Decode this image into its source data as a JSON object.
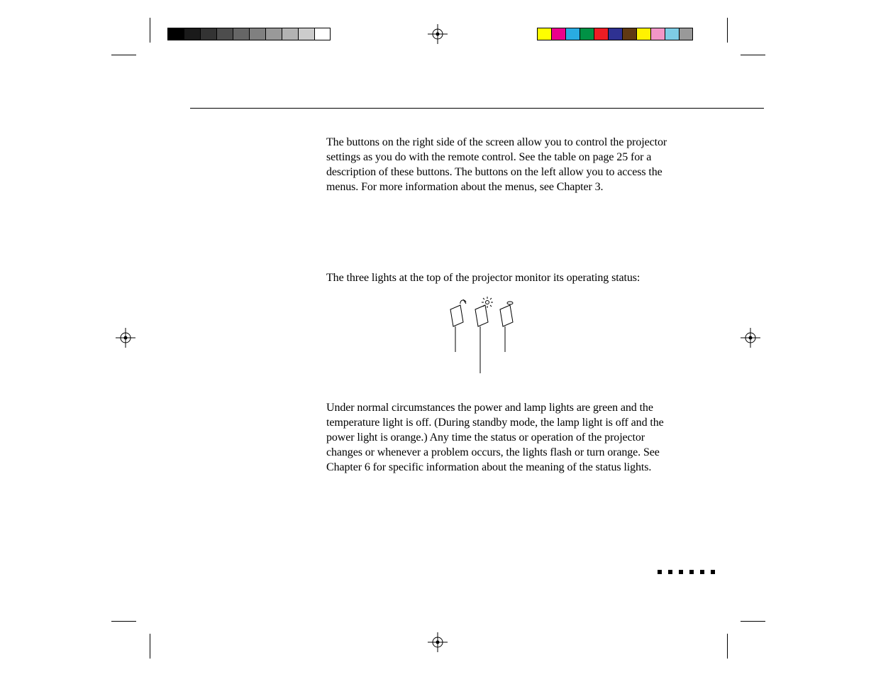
{
  "page": {
    "paragraph1": "The buttons on the right side of the screen allow you to control the projector settings as you do with the remote control. See the table on page 25 for a description of these buttons. The buttons on the left allow you to access the menus. For more information about the menus, see Chapter 3.",
    "paragraph2": "The three lights at the top of the projector monitor its operating status:",
    "paragraph3": "Under normal circumstances the power and lamp lights are green and the temperature light is off. (During standby mode, the lamp light is off and the power light is orange.) Any time the status or operation of the projector changes or whenever a problem occurs, the lights flash or turn orange. See Chapter 6 for specific information about the meaning of the status lights."
  },
  "printers_marks": {
    "gray_steps": [
      "#000000",
      "#1a1a1a",
      "#333333",
      "#4d4d4d",
      "#666666",
      "#808080",
      "#999999",
      "#b3b3b3",
      "#cccccc",
      "#ffffff"
    ],
    "color_swatches": [
      "#ffff00",
      "#ec008c",
      "#29abe2",
      "#009245",
      "#ed1c24",
      "#2e3192",
      "#603913",
      "#fff200",
      "#f296c7",
      "#7ecce5",
      "#999999"
    ],
    "crop_marks": true,
    "registration_marks": true
  },
  "layout": {
    "dot_count": 6
  }
}
